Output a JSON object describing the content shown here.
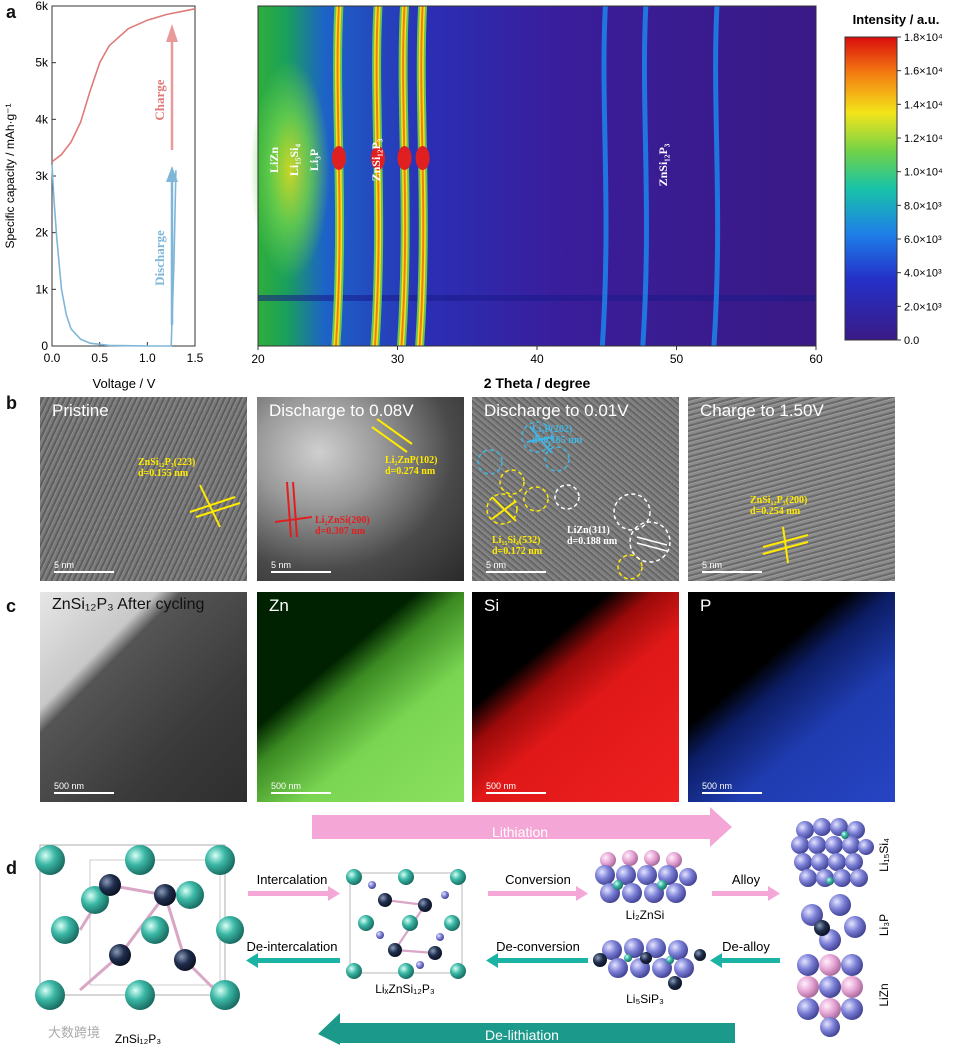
{
  "panel_labels": {
    "a": "a",
    "b": "b",
    "c": "c",
    "d": "d"
  },
  "chart_data": [
    {
      "type": "line",
      "ylabel": "Specific capacity / mAh·g⁻¹",
      "xlabel": "Voltage / V",
      "xlim": [
        0,
        1.5
      ],
      "ylim": [
        0,
        6000
      ],
      "x_ticks": [
        "0.0",
        "0.5",
        "1.0",
        "1.5"
      ],
      "y_ticks": [
        "0",
        "1k",
        "2k",
        "3k",
        "4k",
        "5k",
        "6k"
      ],
      "series": [
        {
          "name": "Charge",
          "color": "#e07a7a",
          "x": [
            0.0,
            0.1,
            0.2,
            0.3,
            0.4,
            0.5,
            0.6,
            0.8,
            1.0,
            1.2,
            1.5
          ],
          "y": [
            3250,
            3380,
            3600,
            3950,
            4500,
            5000,
            5300,
            5600,
            5750,
            5850,
            5950
          ]
        },
        {
          "name": "Discharge",
          "color": "#7fb6d8",
          "x": [
            0.0,
            0.02,
            0.05,
            0.1,
            0.15,
            0.2,
            0.3,
            0.4,
            0.6,
            1.0,
            1.25,
            1.28,
            1.3
          ],
          "y": [
            3200,
            2600,
            1900,
            1000,
            550,
            300,
            120,
            50,
            10,
            0,
            0,
            1500,
            3100
          ]
        }
      ]
    },
    {
      "type": "heatmap",
      "xlabel": "2 Theta / degree",
      "xlim": [
        20,
        60
      ],
      "x_ticks": [
        "20",
        "30",
        "40",
        "50",
        "60"
      ],
      "colorbar_title": "Intensity / a.u.",
      "colorbar_ticks": [
        "0.0",
        "2.0×10³",
        "4.0×10³",
        "6.0×10³",
        "8.0×10³",
        "1.0×10⁴",
        "1.2×10⁴",
        "1.4×10⁴",
        "1.6×10⁴",
        "1.8×10⁴"
      ],
      "peak_positions": [
        25.8,
        28.6,
        30.5,
        31.8,
        44.9,
        47.8,
        52.9
      ],
      "annotations": [
        "LiZn",
        "Li₁₅Si₄",
        "Li₃P",
        "ZnSi₁₂P₃",
        "ZnSi₁₂P₃"
      ]
    }
  ],
  "tem_panels": [
    {
      "title": "Pristine",
      "scale": "5 nm",
      "notes": [
        "ZnSi₁₂P₃(223)",
        "d=0.155 nm"
      ]
    },
    {
      "title": "Discharge to 0.08V",
      "scale": "5 nm",
      "notes": [
        "Li₂ZnP(102)",
        "d=0.274 nm",
        "Li₂ZnSi(200)",
        "d=0.307 nm"
      ]
    },
    {
      "title": "Discharge to 0.01V",
      "scale": "5 nm",
      "notes": [
        "Li₃P(202)",
        "d=0.165 nm",
        "Li₁₅Si₄(532)",
        "d=0.172 nm",
        "LiZn(311)",
        "d=0.188 nm"
      ]
    },
    {
      "title": "Charge to 1.50V",
      "scale": "5 nm",
      "notes": [
        "ZnSi₁₂P₃(200)",
        "d=0.254 nm"
      ]
    }
  ],
  "eds_panels": [
    {
      "title": "ZnSi₁₂P₃ After cycling",
      "scale": "500 nm",
      "color": "#888888"
    },
    {
      "title": "Zn",
      "scale": "500 nm",
      "color": "#6fd24a"
    },
    {
      "title": "Si",
      "scale": "500 nm",
      "color": "#e02020"
    },
    {
      "title": "P",
      "scale": "500 nm",
      "color": "#2a4fd0"
    }
  ],
  "schematic": {
    "lithiation": "Lithiation",
    "delithiation": "De-lithiation",
    "intercalation": "Intercalation",
    "deintercalation": "De-intercalation",
    "conversion": "Conversion",
    "deconversion": "De-conversion",
    "alloy": "Alloy",
    "dealloy": "De-alloy",
    "znsip": "ZnSi₁₂P₃",
    "lixznsip": "LiₓZnSi₁₂P₃",
    "li2znsi": "Li₂ZnSi",
    "li5sip3": "Li₅SiP₃",
    "li15si4": "Li₁₅Si₄",
    "li3p": "Li₃P",
    "lizn": "LiZn"
  },
  "watermark": "大数跨境"
}
